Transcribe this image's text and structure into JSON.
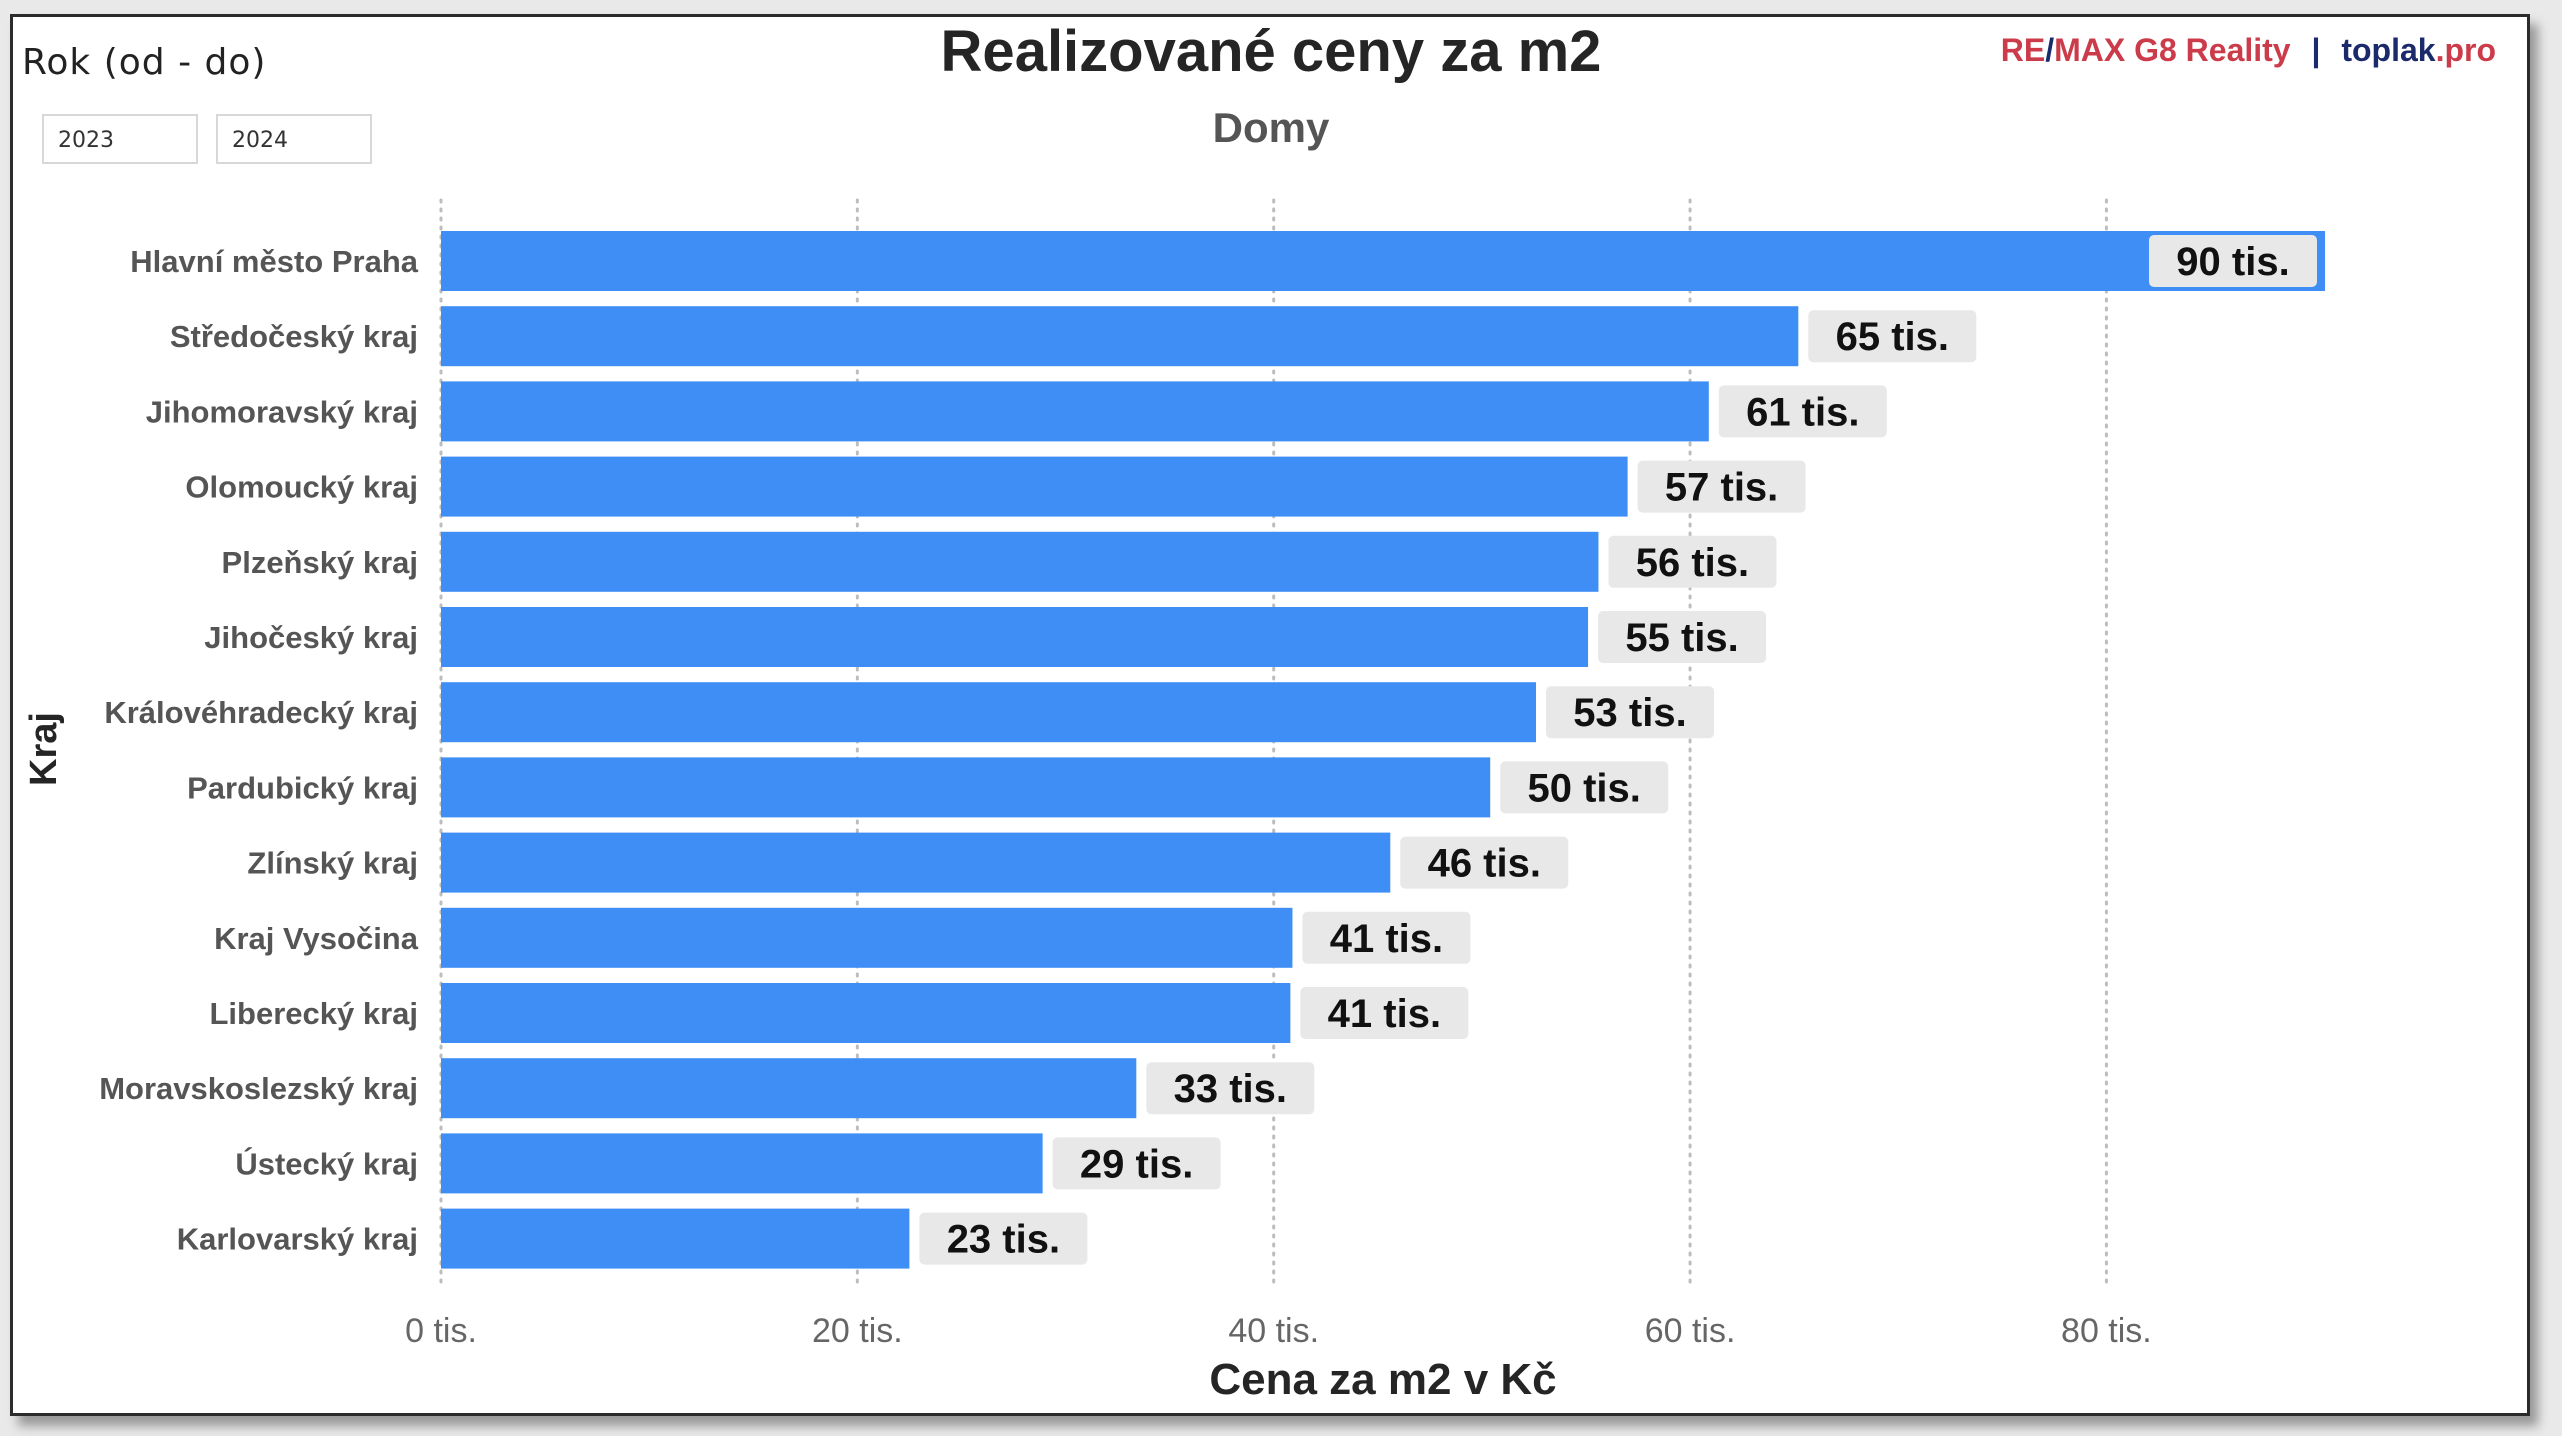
{
  "filter": {
    "label": "Rok (od - do)",
    "from": "2023",
    "to": "2024"
  },
  "brand": {
    "remax_re": "RE",
    "remax_slash": "/",
    "remax_rest": "MAX G8 Reality",
    "separator": "|",
    "toplak": "toplak",
    "toplak_pro": ".pro"
  },
  "colors": {
    "bar": "#3f8ef6",
    "label_bg": "#e8e8e8",
    "grid": "#bdbdbd"
  },
  "chart_data": {
    "type": "bar",
    "orientation": "horizontal",
    "title": "Realizované ceny za m2",
    "subtitle": "Domy",
    "xlabel": "Cena za m2 v Kč",
    "ylabel": "Kraj",
    "xlim": [
      0,
      90.5
    ],
    "grid": "vertical dotted",
    "x_ticks": [
      {
        "value": 0,
        "label": "0 tis."
      },
      {
        "value": 20,
        "label": "20 tis."
      },
      {
        "value": 40,
        "label": "40 tis."
      },
      {
        "value": 60,
        "label": "60 tis."
      },
      {
        "value": 80,
        "label": "80 tis."
      }
    ],
    "categories": [
      "Hlavní město Praha",
      "Středočeský kraj",
      "Jihomoravský kraj",
      "Olomoucký kraj",
      "Plzeňský kraj",
      "Jihočeský kraj",
      "Královéhradecký kraj",
      "Pardubický kraj",
      "Zlínský kraj",
      "Kraj Vysočina",
      "Liberecký kraj",
      "Moravskoslezský kraj",
      "Ústecký kraj",
      "Karlovarský kraj"
    ],
    "values": [
      90.5,
      65.2,
      60.9,
      57.0,
      55.6,
      55.1,
      52.6,
      50.4,
      45.6,
      40.9,
      40.8,
      33.4,
      28.9,
      22.5
    ],
    "value_labels": [
      "90 tis.",
      "65 tis.",
      "61 tis.",
      "57 tis.",
      "56 tis.",
      "55 tis.",
      "53 tis.",
      "50 tis.",
      "46 tis.",
      "41 tis.",
      "41 tis.",
      "33 tis.",
      "29 tis.",
      "23 tis."
    ]
  }
}
